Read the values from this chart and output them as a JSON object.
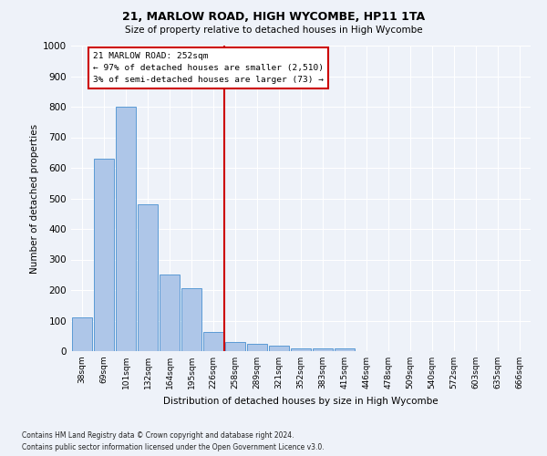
{
  "title": "21, MARLOW ROAD, HIGH WYCOMBE, HP11 1TA",
  "subtitle": "Size of property relative to detached houses in High Wycombe",
  "xlabel": "Distribution of detached houses by size in High Wycombe",
  "ylabel": "Number of detached properties",
  "footnote1": "Contains HM Land Registry data © Crown copyright and database right 2024.",
  "footnote2": "Contains public sector information licensed under the Open Government Licence v3.0.",
  "categories": [
    "38sqm",
    "69sqm",
    "101sqm",
    "132sqm",
    "164sqm",
    "195sqm",
    "226sqm",
    "258sqm",
    "289sqm",
    "321sqm",
    "352sqm",
    "383sqm",
    "415sqm",
    "446sqm",
    "478sqm",
    "509sqm",
    "540sqm",
    "572sqm",
    "603sqm",
    "635sqm",
    "666sqm"
  ],
  "values": [
    110,
    630,
    800,
    480,
    250,
    205,
    63,
    30,
    23,
    17,
    10,
    10,
    10,
    0,
    0,
    0,
    0,
    0,
    0,
    0,
    0
  ],
  "bar_color": "#aec6e8",
  "bar_edge_color": "#5b9bd5",
  "annotation_title": "21 MARLOW ROAD: 252sqm",
  "annotation_line1": "← 97% of detached houses are smaller (2,510)",
  "annotation_line2": "3% of semi-detached houses are larger (73) →",
  "annotation_box_color": "#cc0000",
  "vline_color": "#cc0000",
  "vline_x": 6.52,
  "ylim": [
    0,
    1000
  ],
  "yticks": [
    0,
    100,
    200,
    300,
    400,
    500,
    600,
    700,
    800,
    900,
    1000
  ],
  "background_color": "#eef2f9",
  "grid_color": "#ffffff"
}
